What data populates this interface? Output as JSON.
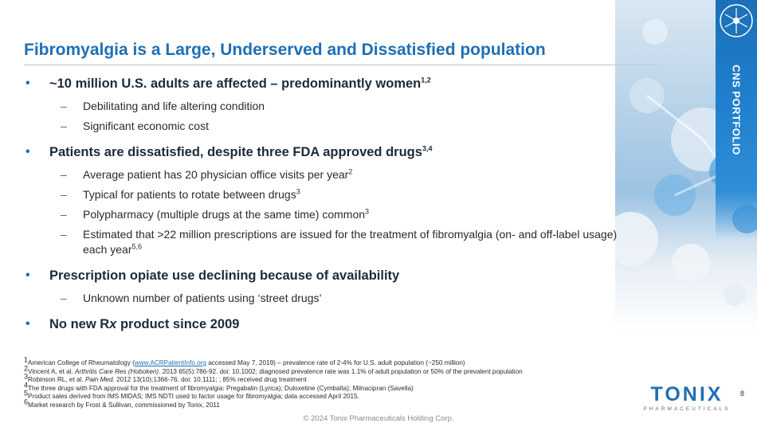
{
  "sidebar": {
    "label": "CNS PORTFOLIO",
    "badge_icon": "neuron-icon"
  },
  "title": "Fibromyalgia is a Large, Underserved and Dissatisfied population",
  "bullets": [
    {
      "text": "~10 million U.S. adults are affected – predominantly women",
      "sup": "1,2",
      "subs": [
        {
          "text": "Debilitating and life altering condition",
          "sup": ""
        },
        {
          "text": "Significant economic cost",
          "sup": ""
        }
      ]
    },
    {
      "text": "Patients are dissatisfied, despite three FDA approved drugs",
      "sup": "3,4",
      "subs": [
        {
          "text": "Average patient has 20 physician office visits per year",
          "sup": "2"
        },
        {
          "text": "Typical for patients to rotate between drugs",
          "sup": "3"
        },
        {
          "text": "Polypharmacy (multiple drugs at the same time) common",
          "sup": "3"
        },
        {
          "text": "Estimated that >22 million prescriptions are issued for the treatment of fibromyalgia (on- and off-label usage) each year",
          "sup": "5,6"
        }
      ]
    },
    {
      "text": "Prescription opiate use declining because of availability",
      "sup": "",
      "subs": [
        {
          "text": "Unknown number of patients using ‘street drugs’",
          "sup": ""
        }
      ]
    },
    {
      "text_before": "No new R",
      "text_italic": "x",
      "text_after": " product since 2009"
    }
  ],
  "footnotes": {
    "fn1": {
      "num": "1",
      "prefix": "American College of Rheumatology (",
      "link": "www.ACRPatientInfo.org",
      "suffix": " accessed May 7, 2019) – prevalence rate of 2-4% for U.S. adult population (~250 million)"
    },
    "fn2": {
      "num": "2",
      "prefix": "Vincent A, et al. ",
      "journal": "Arthritis Care Res (Hoboken).",
      "suffix": " 2013 65(5):786-92. doi: 10.1002; diagnosed prevalence rate was 1.1% of adult population or 50% of the prevalent population"
    },
    "fn3": {
      "num": "3",
      "prefix": "Robinson RL, et al. ",
      "journal": "Pain Med.",
      "suffix": " 2012 13(10):1366-76. doi: 10.1111; ; 85% received drug treatment"
    },
    "fn4": {
      "num": "4",
      "text": "The three drugs with FDA approval for the treatment of fibromyalgia: Pregabalin (Lyrica); Duloxetine (Cymbalta); Milnacipran (Savella)"
    },
    "fn5": {
      "num": "5",
      "text": "Product sales derived from IMS MIDAS; IMS NDTI used to factor usage for fibromyalgia; data accessed April 2015."
    },
    "fn6": {
      "num": "6",
      "text": "Market research by Frost & Sullivan, commissioned by Tonix, 2011"
    }
  },
  "page_number": "8",
  "copyright": "© 2024 Tonix Pharmaceuticals Holding Corp.",
  "logo": {
    "word": "TONIX",
    "sub": "PHARMACEUTICALS"
  }
}
